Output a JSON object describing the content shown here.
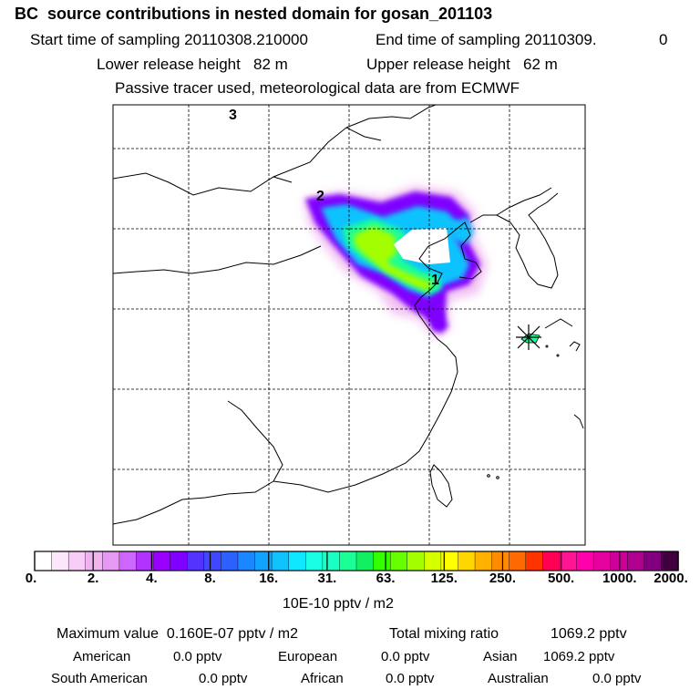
{
  "title": "BC  source contributions in nested domain for gosan_201103",
  "header": {
    "start_label": "Start time of sampling 20110308.210000",
    "end_label": "End time of sampling 20110309.",
    "end_hour": "0",
    "lower_label": "Lower release height   82 m",
    "upper_label": "Upper release height   62 m",
    "tracer_line": "Passive tracer used, meteorological data are from ECMWF"
  },
  "map": {
    "region_labels": [
      "3",
      "2",
      "1"
    ],
    "receptor_icon": "star-burst-icon",
    "grid": "dashed"
  },
  "colorbar": {
    "colors": [
      "#ffffff",
      "#fbe6fb",
      "#f6cdf6",
      "#f0b3f0",
      "#e599f5",
      "#cc66ff",
      "#b233ff",
      "#9900ff",
      "#7f00ff",
      "#5533ff",
      "#3f48ff",
      "#2e60ff",
      "#1a86ff",
      "#10a4ff",
      "#0fc3ff",
      "#0fe6ff",
      "#19ffe6",
      "#1affc3",
      "#1aff96",
      "#10f060",
      "#33ff00",
      "#66ff00",
      "#a3ff00",
      "#d6ff00",
      "#ffff00",
      "#ffd700",
      "#ffb300",
      "#ff8c00",
      "#ff6a00",
      "#ff3300",
      "#ff0055",
      "#ff1493",
      "#ff00aa",
      "#e6009e",
      "#cc0099",
      "#b00090",
      "#800080",
      "#400040"
    ],
    "tick_labels": [
      "0.",
      "2.",
      "4.",
      "8.",
      "16.",
      "31.",
      "63.",
      "125.",
      "250.",
      "500.",
      "1000.",
      "2000."
    ],
    "units": "10E-10 pptv / m2"
  },
  "stats": {
    "max_label": "Maximum value  0.160E-07 pptv / m2",
    "total_label": "Total mixing ratio",
    "total_value": "1069.2 pptv"
  },
  "contributions": [
    {
      "name": "American",
      "value": "0.0 pptv"
    },
    {
      "name": "European",
      "value": "0.0 pptv"
    },
    {
      "name": "Asian",
      "value": "1069.2 pptv"
    },
    {
      "name": "South American",
      "value": "0.0 pptv"
    },
    {
      "name": "African",
      "value": "0.0 pptv"
    },
    {
      "name": "Australian",
      "value": "0.0 pptv"
    }
  ]
}
